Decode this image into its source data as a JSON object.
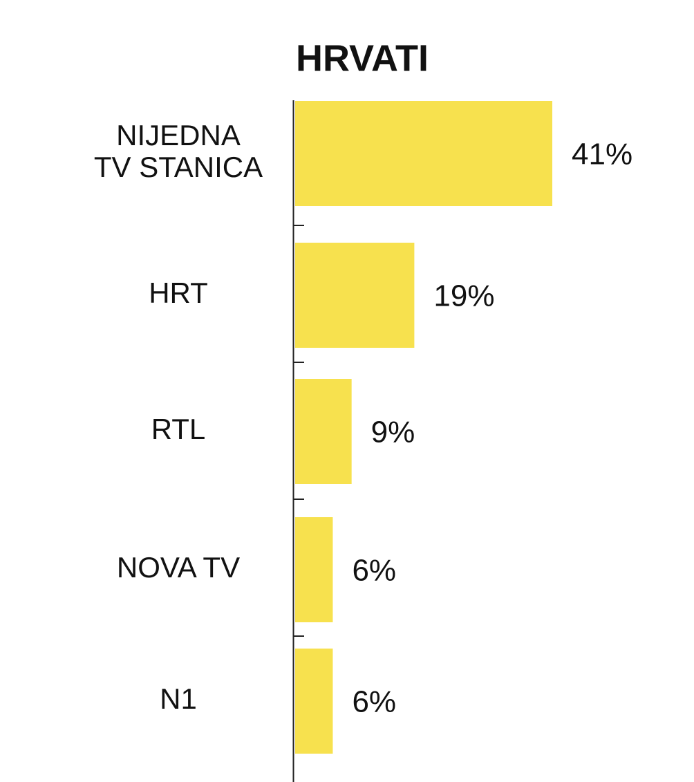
{
  "chart_data": {
    "type": "bar",
    "orientation": "horizontal",
    "title": "HRVATI",
    "categories": [
      "NIJEDNA\nTV STANICA",
      "HRT",
      "RTL",
      "NOVA TV",
      "N1"
    ],
    "values": [
      41,
      19,
      9,
      6,
      6
    ],
    "value_labels": [
      "41%",
      "19%",
      "9%",
      "6%",
      "6%"
    ],
    "color": "#f7e14e"
  }
}
